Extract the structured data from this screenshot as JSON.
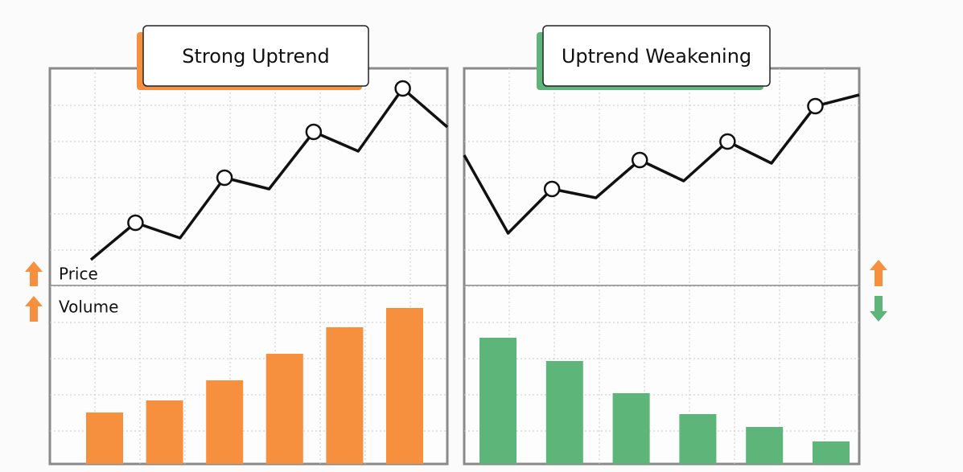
{
  "chart_data": [
    {
      "type": "line-bar",
      "title": "Strong Uptrend",
      "price_label": "Price",
      "volume_label": "Volume",
      "price": [
        32,
        78,
        59,
        134,
        120,
        191,
        167,
        245,
        197
      ],
      "price_color": "#111111",
      "marker_indices": [
        1,
        3,
        5,
        7
      ],
      "price_ylim": [
        0,
        270
      ],
      "volume": [
        64,
        79,
        104,
        137,
        170,
        194
      ],
      "volume_color": "#f7903e",
      "volume_ylim": [
        0,
        222
      ]
    },
    {
      "type": "line-bar",
      "title": "Uptrend Weakening",
      "price": [
        162,
        65,
        120,
        109,
        156,
        130,
        179,
        152,
        223,
        237
      ],
      "price_color": "#111111",
      "marker_indices": [
        2,
        4,
        6,
        8
      ],
      "price_ylim": [
        0,
        270
      ],
      "volume": [
        157,
        128,
        88,
        62,
        46,
        28
      ],
      "volume_color": "#5db57a",
      "volume_ylim": [
        0,
        222
      ]
    }
  ]
}
